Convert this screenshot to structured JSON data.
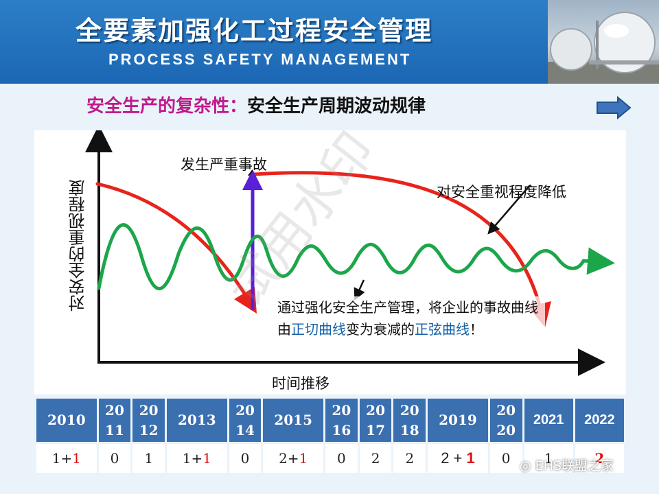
{
  "header": {
    "title": "全要素加强化工过程安全管理",
    "subtitle": "PROCESS SAFETY MANAGEMENT"
  },
  "headline": {
    "part1": "安全生产的复杂性：",
    "part2": "安全生产周期波动规律"
  },
  "chart": {
    "accident_label": "发生严重事故",
    "decline_label": "对安全重视程度降低",
    "y_axis_label": "对安全的重视程度",
    "x_axis_label": "时间推移",
    "note_1": "通过强化安全生产管理，将企业的事故曲线由",
    "note_blue_1": "正切曲线",
    "note_2": "变为衰减的",
    "note_blue_2": "正弦曲线",
    "note_3": "！",
    "watermark": "试用水印",
    "colors": {
      "red_curve": "#e8231c",
      "green_curve": "#1ca64a",
      "accident_arrow": "#5a1fd6"
    }
  },
  "table": {
    "headers": [
      "2010",
      "20\n11",
      "20\n12",
      "2013",
      "20\n14",
      "2015",
      "20\n16",
      "20\n17",
      "20\n18",
      "2019",
      "20\n20",
      "2021",
      "2022"
    ],
    "cells": [
      {
        "a": "1+",
        "b": "1"
      },
      {
        "a": "0",
        "b": ""
      },
      {
        "a": "1",
        "b": ""
      },
      {
        "a": "1+",
        "b": "1"
      },
      {
        "a": "0",
        "b": ""
      },
      {
        "a": "2+",
        "b": "1"
      },
      {
        "a": "0",
        "b": ""
      },
      {
        "a": "2",
        "b": ""
      },
      {
        "a": "2",
        "b": ""
      },
      {
        "a": "2 + ",
        "b": "1"
      },
      {
        "a": "0",
        "b": ""
      },
      {
        "a": "1",
        "b": ""
      },
      {
        "a": "",
        "b": "2"
      }
    ]
  },
  "footer_watermark": "EHS联盟之家"
}
